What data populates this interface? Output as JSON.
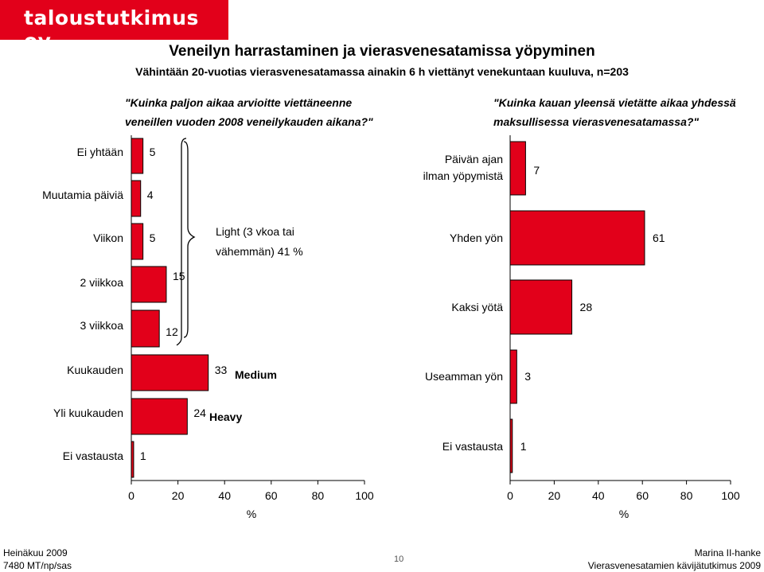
{
  "logo": {
    "text": "taloustutkimus oy"
  },
  "title": "Veneilyn harrastaminen ja vierasvenesatamissa yöpyminen",
  "subtitle": "Vähintään 20-vuotias vierasvenesatamassa ainakin 6 h viettänyt venekuntaan kuuluva, n=203",
  "footer": {
    "date": "Heinäkuu 2009",
    "code": "7480 MT/np/sas",
    "page": "10",
    "author": "Marina II-hanke",
    "study": "Vierasvenesatamien kävijätutkimus 2009"
  },
  "colors": {
    "bar": "#e2001a",
    "logo": "#e2001a"
  },
  "chart_data": [
    {
      "type": "bar",
      "orientation": "horizontal",
      "question_line1": "\"Kuinka paljon aikaa arvioitte viettäneenne",
      "question_line2": "veneillen vuoden 2008 veneilykauden aikana?\"",
      "categories": [
        "Ei yhtään",
        "Muutamia päiviä",
        "Viikon",
        "2 viikkoa",
        "3 viikkoa",
        "Kuukauden",
        "Yli kuukauden",
        "Ei vastausta"
      ],
      "values": [
        5,
        4,
        5,
        15,
        12,
        33,
        24,
        1
      ],
      "xlabel": "%",
      "xlim": [
        0,
        100
      ],
      "xticks": [
        "0",
        "20",
        "40",
        "60",
        "80",
        "100"
      ],
      "annotations": {
        "light_line1": "Light (3 vkoa tai",
        "light_line2": "vähemmän) 41 %",
        "medium": "Medium",
        "heavy": "Heavy"
      }
    },
    {
      "type": "bar",
      "orientation": "horizontal",
      "question_line1": "\"Kuinka kauan yleensä vietätte aikaa yhdessä",
      "question_line2": "maksullisessa vierasvenesatamassa?\"",
      "categories": [
        "Päivän ajan ilman yöpymistä",
        "Yhden yön",
        "Kaksi yötä",
        "Useamman yön",
        "Ei vastausta"
      ],
      "category_lines": [
        [
          "Päivän ajan",
          "ilman yöpymistä"
        ],
        [
          "Yhden yön"
        ],
        [
          "Kaksi yötä"
        ],
        [
          "Useamman yön"
        ],
        [
          "Ei vastausta"
        ]
      ],
      "values": [
        7,
        61,
        28,
        3,
        1
      ],
      "xlabel": "%",
      "xlim": [
        0,
        100
      ],
      "xticks": [
        "0",
        "20",
        "40",
        "60",
        "80",
        "100"
      ]
    }
  ]
}
